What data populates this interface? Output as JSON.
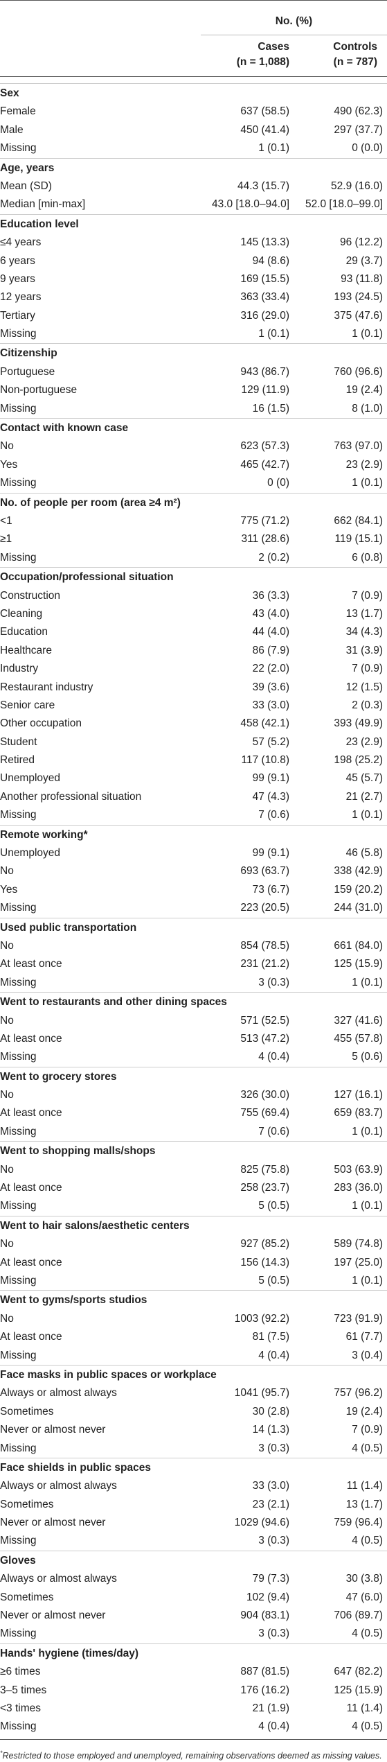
{
  "header": {
    "span_title": "No. (%)",
    "cases": {
      "label": "Cases",
      "n": "(n = 1,088)"
    },
    "controls": {
      "label": "Controls",
      "n": "(n = 787)"
    }
  },
  "sections": [
    {
      "title": "Sex",
      "rows": [
        {
          "label": "Female",
          "cases": "637 (58.5)",
          "controls": "490 (62.3)"
        },
        {
          "label": "Male",
          "cases": "450 (41.4)",
          "controls": "297 (37.7)"
        },
        {
          "label": "Missing",
          "cases": "1 (0.1)",
          "controls": "0 (0.0)"
        }
      ]
    },
    {
      "title": "Age, years",
      "rows": [
        {
          "label": "Mean (SD)",
          "cases": "44.3 (15.7)",
          "controls": "52.9 (16.0)"
        },
        {
          "label": "Median [min-max]",
          "cases": "43.0 [18.0–94.0]",
          "controls": "52.0 [18.0–99.0]"
        }
      ]
    },
    {
      "title": "Education level",
      "rows": [
        {
          "label": "≤4 years",
          "cases": "145 (13.3)",
          "controls": "96 (12.2)"
        },
        {
          "label": "6 years",
          "cases": "94 (8.6)",
          "controls": "29 (3.7)"
        },
        {
          "label": "9 years",
          "cases": "169 (15.5)",
          "controls": "93 (11.8)"
        },
        {
          "label": "12 years",
          "cases": "363 (33.4)",
          "controls": "193 (24.5)"
        },
        {
          "label": "Tertiary",
          "cases": "316 (29.0)",
          "controls": "375 (47.6)"
        },
        {
          "label": "Missing",
          "cases": "1 (0.1)",
          "controls": "1 (0.1)"
        }
      ]
    },
    {
      "title": "Citizenship",
      "rows": [
        {
          "label": "Portuguese",
          "cases": "943 (86.7)",
          "controls": "760 (96.6)"
        },
        {
          "label": "Non-portuguese",
          "cases": "129 (11.9)",
          "controls": "19 (2.4)"
        },
        {
          "label": "Missing",
          "cases": "16 (1.5)",
          "controls": "8 (1.0)"
        }
      ]
    },
    {
      "title": "Contact with known case",
      "rows": [
        {
          "label": "No",
          "cases": "623 (57.3)",
          "controls": "763 (97.0)"
        },
        {
          "label": "Yes",
          "cases": "465 (42.7)",
          "controls": "23 (2.9)"
        },
        {
          "label": "Missing",
          "cases": "0 (0)",
          "controls": "1 (0.1)"
        }
      ]
    },
    {
      "title": "No. of people per room (area ≥4 m²)",
      "rows": [
        {
          "label": "<1",
          "cases": "775 (71.2)",
          "controls": "662 (84.1)"
        },
        {
          "label": "≥1",
          "cases": "311 (28.6)",
          "controls": "119 (15.1)"
        },
        {
          "label": "Missing",
          "cases": "2 (0.2)",
          "controls": "6 (0.8)"
        }
      ]
    },
    {
      "title": "Occupation/professional situation",
      "rows": [
        {
          "label": "Construction",
          "cases": "36 (3.3)",
          "controls": "7 (0.9)"
        },
        {
          "label": "Cleaning",
          "cases": "43 (4.0)",
          "controls": "13 (1.7)"
        },
        {
          "label": "Education",
          "cases": "44 (4.0)",
          "controls": "34 (4.3)"
        },
        {
          "label": "Healthcare",
          "cases": "86 (7.9)",
          "controls": "31 (3.9)"
        },
        {
          "label": "Industry",
          "cases": "22 (2.0)",
          "controls": "7 (0.9)"
        },
        {
          "label": "Restaurant industry",
          "cases": "39 (3.6)",
          "controls": "12 (1.5)"
        },
        {
          "label": "Senior care",
          "cases": "33 (3.0)",
          "controls": "2 (0.3)"
        },
        {
          "label": "Other occupation",
          "cases": "458 (42.1)",
          "controls": "393 (49.9)"
        },
        {
          "label": "Student",
          "cases": "57 (5.2)",
          "controls": "23 (2.9)"
        },
        {
          "label": "Retired",
          "cases": "117 (10.8)",
          "controls": "198 (25.2)"
        },
        {
          "label": "Unemployed",
          "cases": "99 (9.1)",
          "controls": "45 (5.7)"
        },
        {
          "label": "Another professional situation",
          "cases": "47 (4.3)",
          "controls": "21 (2.7)"
        },
        {
          "label": "Missing",
          "cases": "7 (0.6)",
          "controls": "1 (0.1)"
        }
      ]
    },
    {
      "title": "Remote working*",
      "rows": [
        {
          "label": "Unemployed",
          "cases": "99 (9.1)",
          "controls": "46 (5.8)"
        },
        {
          "label": "No",
          "cases": "693 (63.7)",
          "controls": "338 (42.9)"
        },
        {
          "label": "Yes",
          "cases": "73 (6.7)",
          "controls": "159 (20.2)"
        },
        {
          "label": "Missing",
          "cases": "223 (20.5)",
          "controls": "244 (31.0)"
        }
      ]
    },
    {
      "title": "Used public transportation",
      "rows": [
        {
          "label": "No",
          "cases": "854 (78.5)",
          "controls": "661 (84.0)"
        },
        {
          "label": "At least once",
          "cases": "231 (21.2)",
          "controls": "125 (15.9)"
        },
        {
          "label": "Missing",
          "cases": "3 (0.3)",
          "controls": "1 (0.1)"
        }
      ]
    },
    {
      "title": "Went to restaurants and other dining spaces",
      "rows": [
        {
          "label": "No",
          "cases": "571 (52.5)",
          "controls": "327 (41.6)"
        },
        {
          "label": "At least once",
          "cases": "513 (47.2)",
          "controls": "455 (57.8)"
        },
        {
          "label": "Missing",
          "cases": "4 (0.4)",
          "controls": "5 (0.6)"
        }
      ]
    },
    {
      "title": "Went to grocery stores",
      "rows": [
        {
          "label": "No",
          "cases": "326 (30.0)",
          "controls": "127 (16.1)"
        },
        {
          "label": "At least once",
          "cases": "755 (69.4)",
          "controls": "659 (83.7)"
        },
        {
          "label": "Missing",
          "cases": "7 (0.6)",
          "controls": "1 (0.1)"
        }
      ]
    },
    {
      "title": "Went to shopping malls/shops",
      "rows": [
        {
          "label": "No",
          "cases": "825 (75.8)",
          "controls": "503 (63.9)"
        },
        {
          "label": "At least once",
          "cases": "258 (23.7)",
          "controls": "283 (36.0)"
        },
        {
          "label": "Missing",
          "cases": "5 (0.5)",
          "controls": "1 (0.1)"
        }
      ]
    },
    {
      "title": "Went to hair salons/aesthetic centers",
      "rows": [
        {
          "label": "No",
          "cases": "927 (85.2)",
          "controls": "589 (74.8)"
        },
        {
          "label": "At least once",
          "cases": "156 (14.3)",
          "controls": "197 (25.0)"
        },
        {
          "label": "Missing",
          "cases": "5 (0.5)",
          "controls": "1 (0.1)"
        }
      ]
    },
    {
      "title": "Went to gyms/sports studios",
      "rows": [
        {
          "label": "No",
          "cases": "1003 (92.2)",
          "controls": "723 (91.9)"
        },
        {
          "label": "At least once",
          "cases": "81 (7.5)",
          "controls": "61 (7.7)"
        },
        {
          "label": "Missing",
          "cases": "4 (0.4)",
          "controls": "3 (0.4)"
        }
      ]
    },
    {
      "title": "Face masks in public spaces or workplace",
      "rows": [
        {
          "label": "Always or almost always",
          "cases": "1041 (95.7)",
          "controls": "757 (96.2)"
        },
        {
          "label": "Sometimes",
          "cases": "30 (2.8)",
          "controls": "19 (2.4)"
        },
        {
          "label": "Never or almost never",
          "cases": "14 (1.3)",
          "controls": "7 (0.9)"
        },
        {
          "label": "Missing",
          "cases": "3 (0.3)",
          "controls": "4 (0.5)"
        }
      ]
    },
    {
      "title": "Face shields in public spaces",
      "rows": [
        {
          "label": "Always or almost always",
          "cases": "33 (3.0)",
          "controls": "11 (1.4)"
        },
        {
          "label": "Sometimes",
          "cases": "23 (2.1)",
          "controls": "13 (1.7)"
        },
        {
          "label": "Never or almost never",
          "cases": "1029 (94.6)",
          "controls": "759 (96.4)"
        },
        {
          "label": "Missing",
          "cases": "3 (0.3)",
          "controls": "4 (0.5)"
        }
      ]
    },
    {
      "title": "Gloves",
      "rows": [
        {
          "label": "Always or almost always",
          "cases": "79 (7.3)",
          "controls": "30 (3.8)"
        },
        {
          "label": "Sometimes",
          "cases": "102 (9.4)",
          "controls": "47 (6.0)"
        },
        {
          "label": "Never or almost never",
          "cases": "904 (83.1)",
          "controls": "706 (89.7)"
        },
        {
          "label": "Missing",
          "cases": "3 (0.3)",
          "controls": "4 (0.5)"
        }
      ]
    },
    {
      "title": "Hands' hygiene (times/day)",
      "rows": [
        {
          "label": "≥6 times",
          "cases": "887 (81.5)",
          "controls": "647 (82.2)"
        },
        {
          "label": "3–5 times",
          "cases": "176 (16.2)",
          "controls": "125 (15.9)"
        },
        {
          "label": "<3 times",
          "cases": "21 (1.9)",
          "controls": "11 (1.4)"
        },
        {
          "label": "Missing",
          "cases": "4 (0.4)",
          "controls": "4 (0.5)"
        }
      ]
    }
  ],
  "footnote": {
    "marker": "*",
    "text": "Restricted to those employed and unemployed, remaining observations deemed as missing values."
  }
}
